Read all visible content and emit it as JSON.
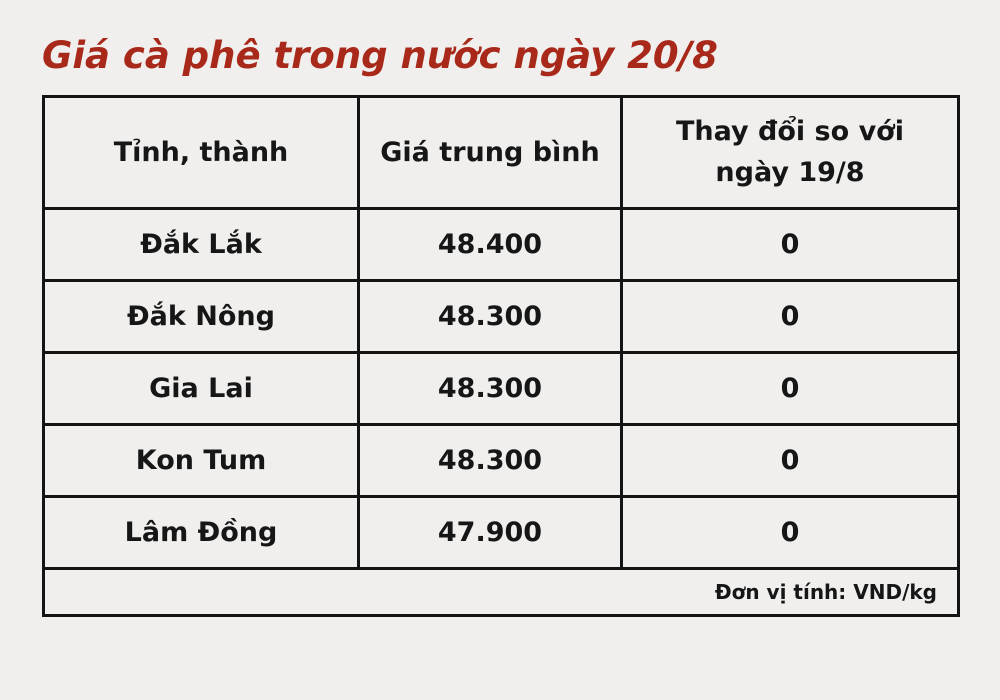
{
  "colors": {
    "background": "#f0efed",
    "title_accent": "#a8291a",
    "table_border": "#141414",
    "text": "#161616"
  },
  "chart_data": {
    "type": "table",
    "title": "Giá cà phê trong nước ngày 20/8",
    "columns": [
      "Tỉnh, thành",
      "Giá trung bình",
      "Thay đổi so với ngày 19/8"
    ],
    "rows": [
      {
        "province": "Đắk Lắk",
        "price": "48.400",
        "change": "0"
      },
      {
        "province": "Đắk Nông",
        "price": "48.300",
        "change": "0"
      },
      {
        "province": "Gia Lai",
        "price": "48.300",
        "change": "0"
      },
      {
        "province": "Kon Tum",
        "price": "48.300",
        "change": "0"
      },
      {
        "province": "Lâm Đồng",
        "price": "47.900",
        "change": "0"
      }
    ],
    "footnote": "Đơn vị tính: VND/kg",
    "layout_hints": {
      "grid": "all-borders",
      "body_text": "bold-centered",
      "footnote_align": "right"
    }
  }
}
